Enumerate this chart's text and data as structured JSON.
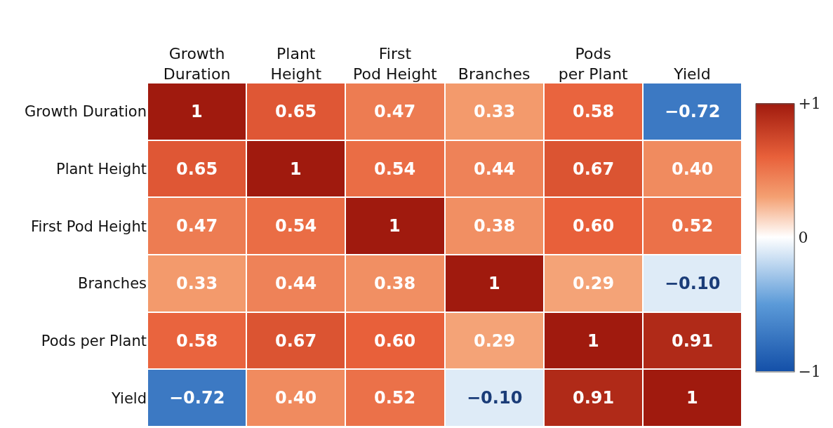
{
  "chart_data": {
    "type": "heatmap",
    "categories": [
      "Growth Duration",
      "Plant Height",
      "First Pod Height",
      "Branches",
      "Pods per Plant",
      "Yield"
    ],
    "y_categories": [
      "Growth Duration",
      "Plant Height",
      "First Pod Height",
      "Branches",
      "Pods per Plant",
      "Yield"
    ],
    "cells": [
      [
        1,
        0.65,
        0.47,
        0.33,
        0.58,
        -0.72
      ],
      [
        0.65,
        1,
        0.54,
        0.44,
        0.67,
        0.4
      ],
      [
        0.47,
        0.54,
        1,
        0.38,
        0.6,
        0.52
      ],
      [
        0.33,
        0.44,
        0.38,
        1,
        0.29,
        -0.1
      ],
      [
        0.58,
        0.67,
        0.6,
        0.29,
        1,
        0.91
      ],
      [
        -0.72,
        0.4,
        0.52,
        -0.1,
        0.91,
        1
      ]
    ],
    "cell_labels": [
      [
        "1",
        "0.65",
        "0.47",
        "0.33",
        "0.58",
        "−0.72"
      ],
      [
        "0.65",
        "1",
        "0.54",
        "0.44",
        "0.67",
        "0.40"
      ],
      [
        "0.47",
        "0.54",
        "1",
        "0.38",
        "0.60",
        "0.52"
      ],
      [
        "0.33",
        "0.44",
        "0.38",
        "1",
        "0.29",
        "−0.10"
      ],
      [
        "0.58",
        "0.67",
        "0.60",
        "0.29",
        "1",
        "0.91"
      ],
      [
        "−0.72",
        "0.40",
        "0.52",
        "−0.10",
        "0.91",
        "1"
      ]
    ],
    "clim": [
      -1,
      1
    ],
    "cticks": [
      {
        "value": 1,
        "label": "+1"
      },
      0,
      {
        "value": -1,
        "label": "−1"
      }
    ]
  }
}
